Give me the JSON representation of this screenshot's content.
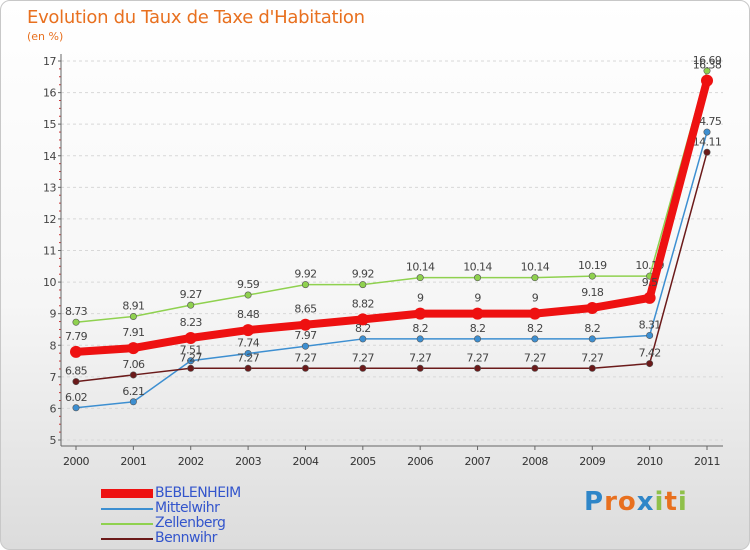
{
  "title": "Evolution du Taux de Taxe d'Habitation",
  "subtitle": "(en %)",
  "colors": {
    "title": "#e8701f",
    "legend_text": "#3355cc",
    "grid": "#d8d8d8"
  },
  "chart_data": {
    "type": "line",
    "title": "Evolution du Taux de Taxe d'Habitation",
    "ylabel": "(en %)",
    "xlabel": "",
    "x": [
      "2000",
      "2001",
      "2002",
      "2003",
      "2004",
      "2005",
      "2006",
      "2007",
      "2008",
      "2009",
      "2010",
      "2011"
    ],
    "ylim": [
      5,
      17
    ],
    "yticks": [
      "5",
      "6",
      "7",
      "8",
      "9",
      "10",
      "11",
      "12",
      "13",
      "14",
      "15",
      "16",
      "17"
    ],
    "grid": "horizontal dashed",
    "legend_placement": "bottom-left",
    "series": [
      {
        "name": "Zellenberg",
        "color": "#8fd14f",
        "values": [
          8.73,
          8.91,
          9.27,
          9.59,
          9.92,
          9.92,
          10.14,
          10.14,
          10.14,
          10.19,
          10.19,
          16.69
        ],
        "labels": [
          "8.73",
          "8.91",
          "9.27",
          "9.59",
          "9.92",
          "9.92",
          "10.14",
          "10.14",
          "10.14",
          "10.19",
          "10.19",
          "16.69"
        ]
      },
      {
        "name": "Mittelwihr",
        "color": "#3d8fd1",
        "values": [
          6.02,
          6.21,
          7.51,
          7.74,
          7.97,
          8.2,
          8.2,
          8.2,
          8.2,
          8.2,
          8.31,
          14.75
        ],
        "labels": [
          "6.02",
          "6.21",
          "7.51",
          "7.74",
          "7.97",
          "8.2",
          "8.2",
          "8.2",
          "8.2",
          "8.2",
          "8.31",
          "14.75"
        ]
      },
      {
        "name": "Bennwihr",
        "color": "#6b1a1a",
        "values": [
          6.85,
          7.06,
          7.27,
          7.27,
          7.27,
          7.27,
          7.27,
          7.27,
          7.27,
          7.27,
          7.42,
          14.11
        ],
        "labels": [
          "6.85",
          "7.06",
          "7.27",
          "7.27",
          "7.27",
          "7.27",
          "7.27",
          "7.27",
          "7.27",
          "7.27",
          "7.42",
          "14.11"
        ]
      },
      {
        "name": "BEBLENHEIM",
        "color": "#ee1111",
        "values": [
          7.79,
          7.91,
          8.23,
          8.48,
          8.65,
          8.82,
          9,
          9,
          9,
          9.18,
          9.5,
          16.38
        ],
        "labels": [
          "7.79",
          "7.91",
          "8.23",
          "8.48",
          "8.65",
          "8.82",
          "9",
          "9",
          "9",
          "9.18",
          "9.5",
          "16.38"
        ]
      }
    ]
  },
  "legend": [
    {
      "label": "BEBLENHEIM",
      "color": "#ee1111"
    },
    {
      "label": "Mittelwihr",
      "color": "#3d8fd1"
    },
    {
      "label": "Zellenberg",
      "color": "#8fd14f"
    },
    {
      "label": "Bennwihr",
      "color": "#6b1a1a"
    }
  ],
  "logo": {
    "text": "Proxiti",
    "letters": [
      "P",
      "r",
      "o",
      "x",
      "i",
      "t",
      "i"
    ],
    "colors": [
      "#2f86c8",
      "#e8701f",
      "#e8701f",
      "#2f86c8",
      "#8fc04a",
      "#e8701f",
      "#8fc04a"
    ]
  }
}
